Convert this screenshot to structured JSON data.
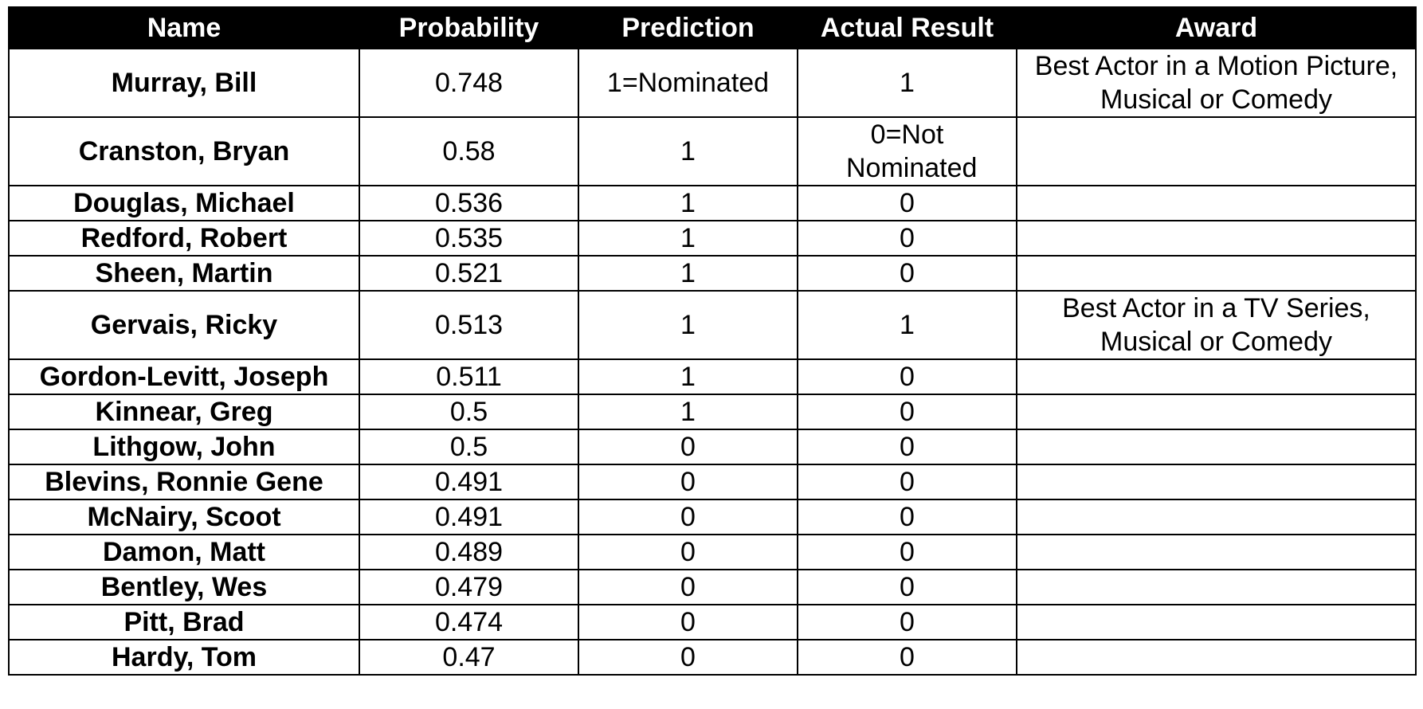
{
  "table": {
    "headers": {
      "name": "Name",
      "probability": "Probability",
      "prediction": "Prediction",
      "actual": "Actual Result",
      "award": "Award"
    },
    "rows": [
      {
        "name": "Murray, Bill",
        "probability": "0.748",
        "prediction": "1=Nominated",
        "actual": "1",
        "award": "Best Actor in a Motion Picture, Musical or Comedy"
      },
      {
        "name": "Cranston, Bryan",
        "probability": "0.58",
        "prediction": "1",
        "actual": "0=Not Nominated",
        "award": ""
      },
      {
        "name": "Douglas, Michael",
        "probability": "0.536",
        "prediction": "1",
        "actual": "0",
        "award": ""
      },
      {
        "name": "Redford, Robert",
        "probability": "0.535",
        "prediction": "1",
        "actual": "0",
        "award": ""
      },
      {
        "name": "Sheen, Martin",
        "probability": "0.521",
        "prediction": "1",
        "actual": "0",
        "award": ""
      },
      {
        "name": "Gervais, Ricky",
        "probability": "0.513",
        "prediction": "1",
        "actual": "1",
        "award": "Best Actor in a TV Series, Musical or Comedy"
      },
      {
        "name": "Gordon-Levitt, Joseph",
        "probability": "0.511",
        "prediction": "1",
        "actual": "0",
        "award": ""
      },
      {
        "name": "Kinnear, Greg",
        "probability": "0.5",
        "prediction": "1",
        "actual": "0",
        "award": ""
      },
      {
        "name": "Lithgow, John",
        "probability": "0.5",
        "prediction": "0",
        "actual": "0",
        "award": ""
      },
      {
        "name": "Blevins, Ronnie Gene",
        "probability": "0.491",
        "prediction": "0",
        "actual": "0",
        "award": ""
      },
      {
        "name": "McNairy, Scoot",
        "probability": "0.491",
        "prediction": "0",
        "actual": "0",
        "award": ""
      },
      {
        "name": "Damon, Matt",
        "probability": "0.489",
        "prediction": "0",
        "actual": "0",
        "award": ""
      },
      {
        "name": "Bentley, Wes",
        "probability": "0.479",
        "prediction": "0",
        "actual": "0",
        "award": ""
      },
      {
        "name": "Pitt, Brad",
        "probability": "0.474",
        "prediction": "0",
        "actual": "0",
        "award": ""
      },
      {
        "name": "Hardy, Tom",
        "probability": "0.47",
        "prediction": "0",
        "actual": "0",
        "award": ""
      }
    ]
  }
}
